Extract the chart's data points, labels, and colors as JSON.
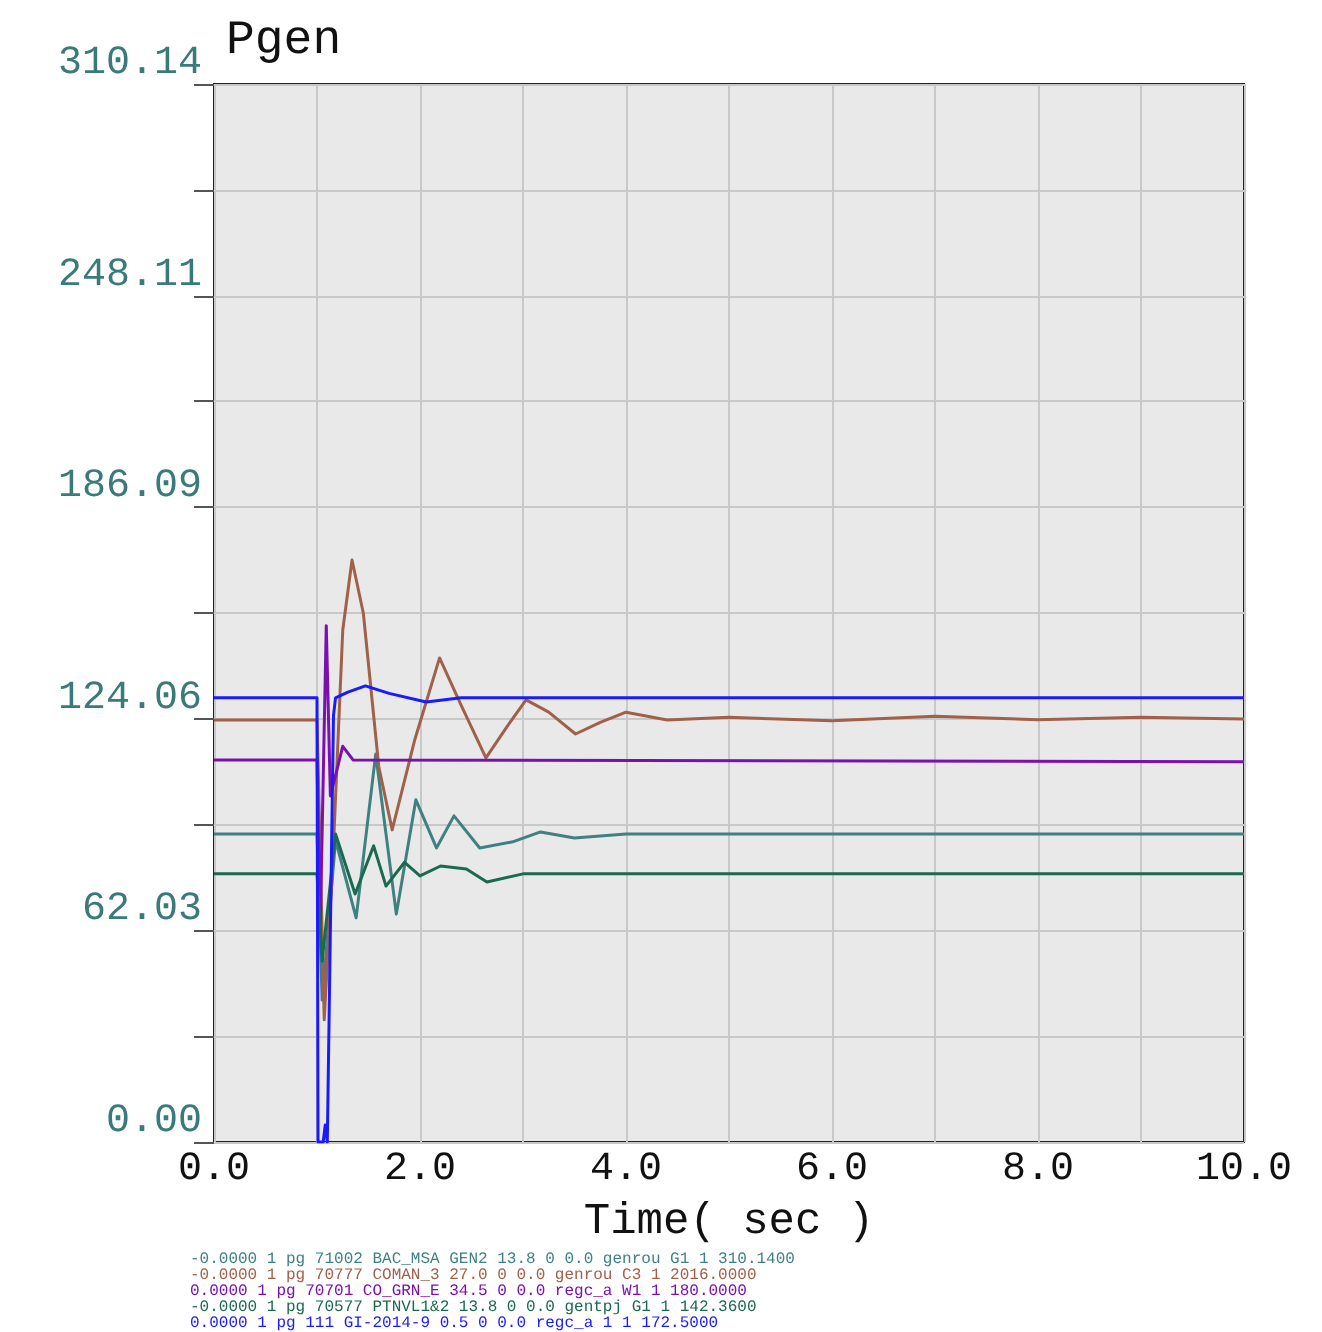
{
  "chart_data": {
    "type": "line",
    "title": "Pgen",
    "xlabel": "Time( sec )",
    "xlim": [
      0,
      10
    ],
    "xticks": [
      {
        "value": 0,
        "label": "0.0"
      },
      {
        "value": 1,
        "label": null
      },
      {
        "value": 2,
        "label": "2.0"
      },
      {
        "value": 3,
        "label": null
      },
      {
        "value": 4,
        "label": "4.0"
      },
      {
        "value": 5,
        "label": null
      },
      {
        "value": 6,
        "label": "6.0"
      },
      {
        "value": 7,
        "label": null
      },
      {
        "value": 8,
        "label": "8.0"
      },
      {
        "value": 9,
        "label": null
      },
      {
        "value": 10,
        "label": "10.0"
      }
    ],
    "ylim": [
      0,
      310.14
    ],
    "yticks": [
      {
        "value": 0,
        "label": "0.00"
      },
      {
        "value": 31.01,
        "label": null
      },
      62.03,
      {
        "value": 93.04,
        "label": null
      },
      124.06,
      {
        "value": 155.07,
        "label": null
      },
      186.09,
      {
        "value": 217.1,
        "label": null
      },
      248.11,
      {
        "value": 279.12,
        "label": null
      },
      310.14
    ],
    "grid": true,
    "legend": "bottom",
    "marker": "none",
    "line_style": "solid",
    "series": [
      {
        "name": "-0.0000 1 pg 71002 BAC_MSA GEN2 13.8 0 0.0 genrou G1 1 310.1400",
        "color": "#3f8080",
        "x": [
          0,
          1.0,
          1.05,
          1.18,
          1.38,
          1.57,
          1.77,
          1.96,
          2.16,
          2.33,
          2.58,
          2.9,
          3.17,
          3.5,
          4,
          10
        ],
        "values": [
          90.3,
          90.3,
          41.6,
          88.5,
          65.7,
          113.7,
          66.8,
          100.3,
          86.2,
          95.6,
          86.2,
          88,
          90.9,
          89.1,
          90.3,
          90.3
        ]
      },
      {
        "name": "-0.0000 1 pg 70777 COMAN_3 27.0 0 0.0 genrou C3 1 2016.0000",
        "color": "#a0604a",
        "x": [
          0,
          1.0,
          1.07,
          1.15,
          1.25,
          1.34,
          1.45,
          1.6,
          1.73,
          1.95,
          2.19,
          2.4,
          2.64,
          2.85,
          3.03,
          3.25,
          3.51,
          3.75,
          4.0,
          4.4,
          5,
          6,
          7,
          8,
          9,
          10
        ],
        "values": [
          123.7,
          123.7,
          35.8,
          80,
          150,
          170.6,
          155,
          110,
          91.5,
          118,
          141.9,
          128,
          112.6,
          122,
          129.6,
          126,
          119.6,
          123,
          126,
          123.7,
          124.5,
          123.5,
          124.8,
          123.8,
          124.5,
          124
        ]
      },
      {
        "name": "0.0000 1 pg 70701 CO_GRN_E 34.5 0 0.0 regc_a W1 1 180.0000",
        "color": "#7a10b0",
        "x": [
          0,
          1.0,
          1.03,
          1.09,
          1.13,
          1.25,
          1.35,
          10
        ],
        "values": [
          112,
          112,
          61,
          151.3,
          101.4,
          116,
          112,
          111.5
        ]
      },
      {
        "name": "-0.0000 1 pg 70577 PTNVL1&2 13.8 0 0.0 gentpj G1 1 142.3600",
        "color": "#1a6a50",
        "x": [
          0,
          1.0,
          1.05,
          1.18,
          1.37,
          1.55,
          1.67,
          1.85,
          2.0,
          2.2,
          2.45,
          2.65,
          3.0,
          10
        ],
        "values": [
          78.6,
          78.6,
          53,
          90.3,
          72.7,
          86.8,
          75,
          82,
          78,
          80.9,
          80,
          76.2,
          78.6,
          78.6
        ]
      },
      {
        "name": "0.0000 1 pg 111 GI-2014-9 0.5 0 0.0 regc_a 1 1 172.5000",
        "color": "#1a1aff",
        "x": [
          0,
          1.0,
          1.01,
          1.06,
          1.08,
          1.1,
          1.16,
          1.18,
          1.3,
          1.47,
          1.7,
          2.06,
          2.4,
          10
        ],
        "values": [
          130.2,
          130.2,
          0,
          0,
          5,
          0,
          125,
          130.2,
          131.9,
          133.7,
          131.5,
          129,
          130.2,
          130.2
        ]
      }
    ]
  }
}
